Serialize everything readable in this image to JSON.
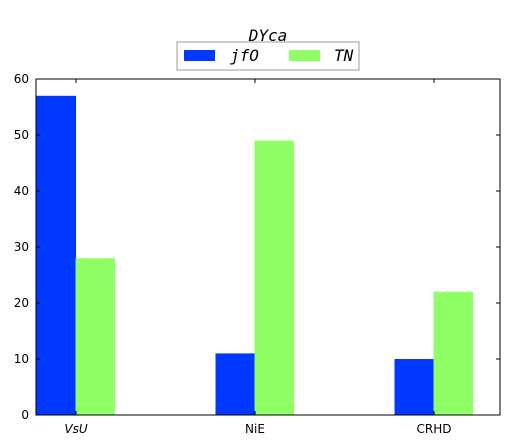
{
  "chart_data": {
    "type": "bar",
    "title": "DYca",
    "xlabel": "",
    "ylabel": "",
    "categories": [
      "VsU",
      "NiE",
      "CRHD"
    ],
    "series": [
      {
        "name": "jfO",
        "color": "#0038ff",
        "values": [
          57,
          11,
          10
        ]
      },
      {
        "name": "TN",
        "color": "#90ff66",
        "values": [
          28,
          49,
          22
        ]
      }
    ],
    "ylim": [
      0,
      60
    ],
    "yticks": [
      0,
      10,
      20,
      30,
      40,
      50,
      60
    ],
    "grid": false,
    "legend_position": "top-center"
  }
}
